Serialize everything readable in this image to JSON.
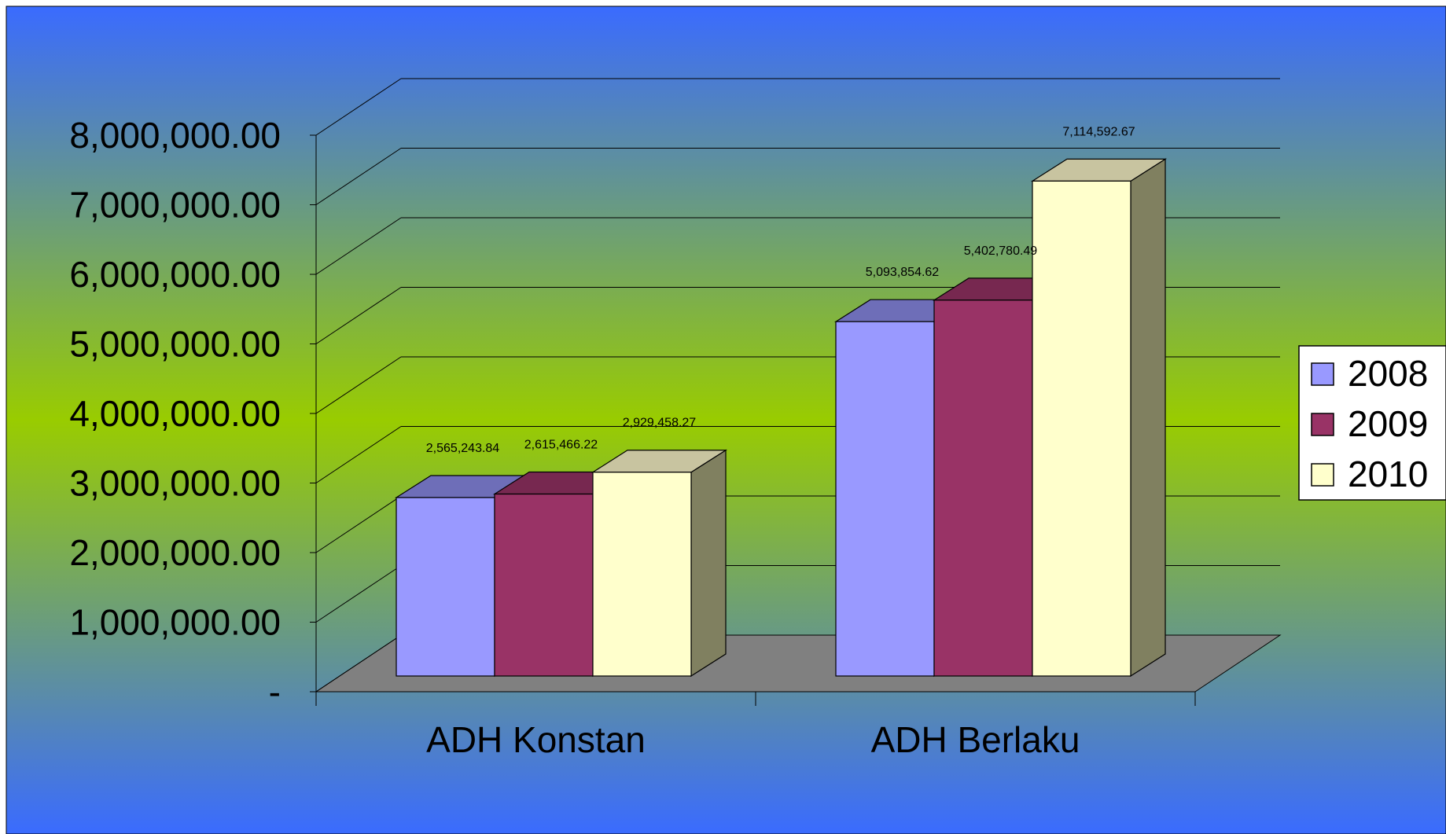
{
  "chart_data": {
    "type": "bar",
    "style": "3d-clustered-column",
    "categories": [
      "ADH Konstan",
      "ADH Berlaku"
    ],
    "series": [
      {
        "name": "2008",
        "values": [
          2565243.84,
          5093854.62
        ],
        "color": "#9999FF",
        "data_labels": [
          "2,565,243.84",
          "5,093,854.62"
        ]
      },
      {
        "name": "2009",
        "values": [
          2615466.22,
          5402780.49
        ],
        "color": "#993366",
        "data_labels": [
          "2,615,466.22",
          "5,402,780.49"
        ]
      },
      {
        "name": "2010",
        "values": [
          2929458.27,
          7114592.67
        ],
        "color": "#FFFFCC",
        "data_labels": [
          "2,929,458.27",
          "7,114,592.67"
        ]
      }
    ],
    "yticks": [
      0,
      1000000,
      2000000,
      3000000,
      4000000,
      5000000,
      6000000,
      7000000,
      8000000
    ],
    "ytick_labels": [
      "-",
      "1,000,000.00",
      "2,000,000.00",
      "3,000,000.00",
      "4,000,000.00",
      "5,000,000.00",
      "6,000,000.00",
      "7,000,000.00",
      "8,000,000.00"
    ],
    "ylim": [
      0,
      8000000
    ],
    "grid": true,
    "legend_position": "right",
    "floor_color": "#808080",
    "background_gradient": [
      "#3A6BFF",
      "#99CC00",
      "#3A6BFF"
    ]
  }
}
